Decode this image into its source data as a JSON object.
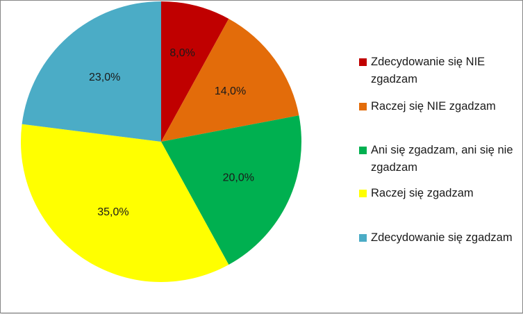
{
  "chart_data": {
    "type": "pie",
    "title": "",
    "legend_position": "right",
    "start_angle_deg": 0,
    "direction": "clockwise",
    "slices": [
      {
        "label": "Zdecydowanie się NIE zgadzam",
        "value": 8.0,
        "display": "8,0%",
        "color": "#c00000"
      },
      {
        "label": "Raczej się NIE zgadzam",
        "value": 14.0,
        "display": "14,0%",
        "color": "#e36c0a"
      },
      {
        "label": "Ani się zgadzam, ani się nie zgadzam",
        "value": 20.0,
        "display": "20,0%",
        "color": "#00b050"
      },
      {
        "label": "Raczej się zgadzam",
        "value": 35.0,
        "display": "35,0%",
        "color": "#ffff00"
      },
      {
        "label": "Zdecydowanie się zgadzam",
        "value": 23.0,
        "display": "23,0%",
        "color": "#4bacc6"
      }
    ]
  }
}
